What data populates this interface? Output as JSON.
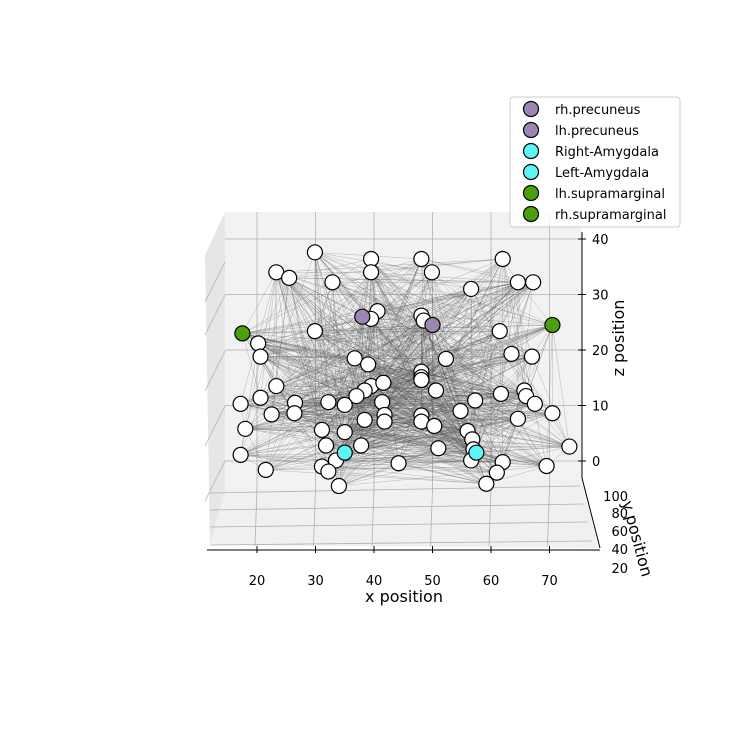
{
  "chart_data": {
    "type": "scatter",
    "projection": "3d",
    "xlabel": "x position",
    "ylabel": "y position",
    "zlabel": "z position",
    "x_ticks": [
      20,
      30,
      40,
      50,
      60,
      70
    ],
    "y_ticks": [
      20,
      40,
      60,
      80,
      100
    ],
    "z_ticks": [
      0,
      10,
      20,
      30,
      40
    ],
    "xlim": [
      11,
      76
    ],
    "zlim": [
      -3,
      43
    ],
    "grid": true,
    "legend_position": "top-right",
    "edge_color": "#555555",
    "node_face_color": "#ffffff",
    "node_edge_color": "#000000",
    "highlighted": [
      {
        "name": "rh.precuneus",
        "color": "#9e86b4",
        "x": 38.0,
        "z": 26.0
      },
      {
        "name": "lh.precuneus",
        "color": "#9e86b4",
        "x": 50.0,
        "z": 24.5
      },
      {
        "name": "Right-Amygdala",
        "color": "#5ef5f5",
        "x": 35.0,
        "z": 1.5
      },
      {
        "name": "Left-Amygdala",
        "color": "#5ef5f5",
        "x": 57.5,
        "z": 1.5
      },
      {
        "name": "lh.supramarginal",
        "color": "#4aa10d",
        "x": 17.5,
        "z": 23.0
      },
      {
        "name": "rh.supramarginal",
        "color": "#4aa10d",
        "x": 70.5,
        "z": 24.5
      }
    ],
    "nodes": [
      [
        29.9,
        37.6
      ],
      [
        39.5,
        36.4
      ],
      [
        48.1,
        36.4
      ],
      [
        62.0,
        36.4
      ],
      [
        23.3,
        34.0
      ],
      [
        25.5,
        33.0
      ],
      [
        39.5,
        34.0
      ],
      [
        49.9,
        34.0
      ],
      [
        32.9,
        32.2
      ],
      [
        64.6,
        32.2
      ],
      [
        67.2,
        32.2
      ],
      [
        56.6,
        31.0
      ],
      [
        40.6,
        27.0
      ],
      [
        48.1,
        26.2
      ],
      [
        39.5,
        25.6
      ],
      [
        48.5,
        25.3
      ],
      [
        29.9,
        23.4
      ],
      [
        61.5,
        23.4
      ],
      [
        20.2,
        21.2
      ],
      [
        63.5,
        19.3
      ],
      [
        20.6,
        18.8
      ],
      [
        67.0,
        18.8
      ],
      [
        36.7,
        18.5
      ],
      [
        52.3,
        18.4
      ],
      [
        39.0,
        17.4
      ],
      [
        48.1,
        16.1
      ],
      [
        48.1,
        15.1
      ],
      [
        48.1,
        14.6
      ],
      [
        23.3,
        13.5
      ],
      [
        39.5,
        13.5
      ],
      [
        41.6,
        14.1
      ],
      [
        38.4,
        12.7
      ],
      [
        50.6,
        12.7
      ],
      [
        37.0,
        11.7
      ],
      [
        61.7,
        12.1
      ],
      [
        65.7,
        12.7
      ],
      [
        20.6,
        11.4
      ],
      [
        66.0,
        11.7
      ],
      [
        17.2,
        10.3
      ],
      [
        26.5,
        10.5
      ],
      [
        32.2,
        10.6
      ],
      [
        41.4,
        10.6
      ],
      [
        35.0,
        10.1
      ],
      [
        57.3,
        10.9
      ],
      [
        67.5,
        10.3
      ],
      [
        22.5,
        8.4
      ],
      [
        26.4,
        8.6
      ],
      [
        41.8,
        8.3
      ],
      [
        48.1,
        8.2
      ],
      [
        54.8,
        9.0
      ],
      [
        38.4,
        7.4
      ],
      [
        41.8,
        7.1
      ],
      [
        48.1,
        7.1
      ],
      [
        50.3,
        6.3
      ],
      [
        64.6,
        7.6
      ],
      [
        70.5,
        8.6
      ],
      [
        18.0,
        5.8
      ],
      [
        31.1,
        5.6
      ],
      [
        35.0,
        5.2
      ],
      [
        56.0,
        5.4
      ],
      [
        56.8,
        3.9
      ],
      [
        31.8,
        2.8
      ],
      [
        37.8,
        2.8
      ],
      [
        51.0,
        2.3
      ],
      [
        73.4,
        2.6
      ],
      [
        57.0,
        2.1
      ],
      [
        17.2,
        1.1
      ],
      [
        56.6,
        0.1
      ],
      [
        33.5,
        0.1
      ],
      [
        62.0,
        -0.2
      ],
      [
        44.2,
        -0.4
      ],
      [
        31.1,
        -1.0
      ],
      [
        21.5,
        -1.6
      ],
      [
        69.5,
        -0.9
      ],
      [
        32.2,
        -1.9
      ],
      [
        61.0,
        -2.1
      ],
      [
        34.0,
        -4.5
      ],
      [
        59.2,
        -4.1
      ]
    ]
  },
  "legend": {
    "items": [
      {
        "label": "rh.precuneus",
        "color": "#9e86b4"
      },
      {
        "label": "lh.precuneus",
        "color": "#9e86b4"
      },
      {
        "label": "Right-Amygdala",
        "color": "#5ef5f5"
      },
      {
        "label": "Left-Amygdala",
        "color": "#5ef5f5"
      },
      {
        "label": "lh.supramarginal",
        "color": "#4aa10d"
      },
      {
        "label": "rh.supramarginal",
        "color": "#4aa10d"
      }
    ]
  }
}
